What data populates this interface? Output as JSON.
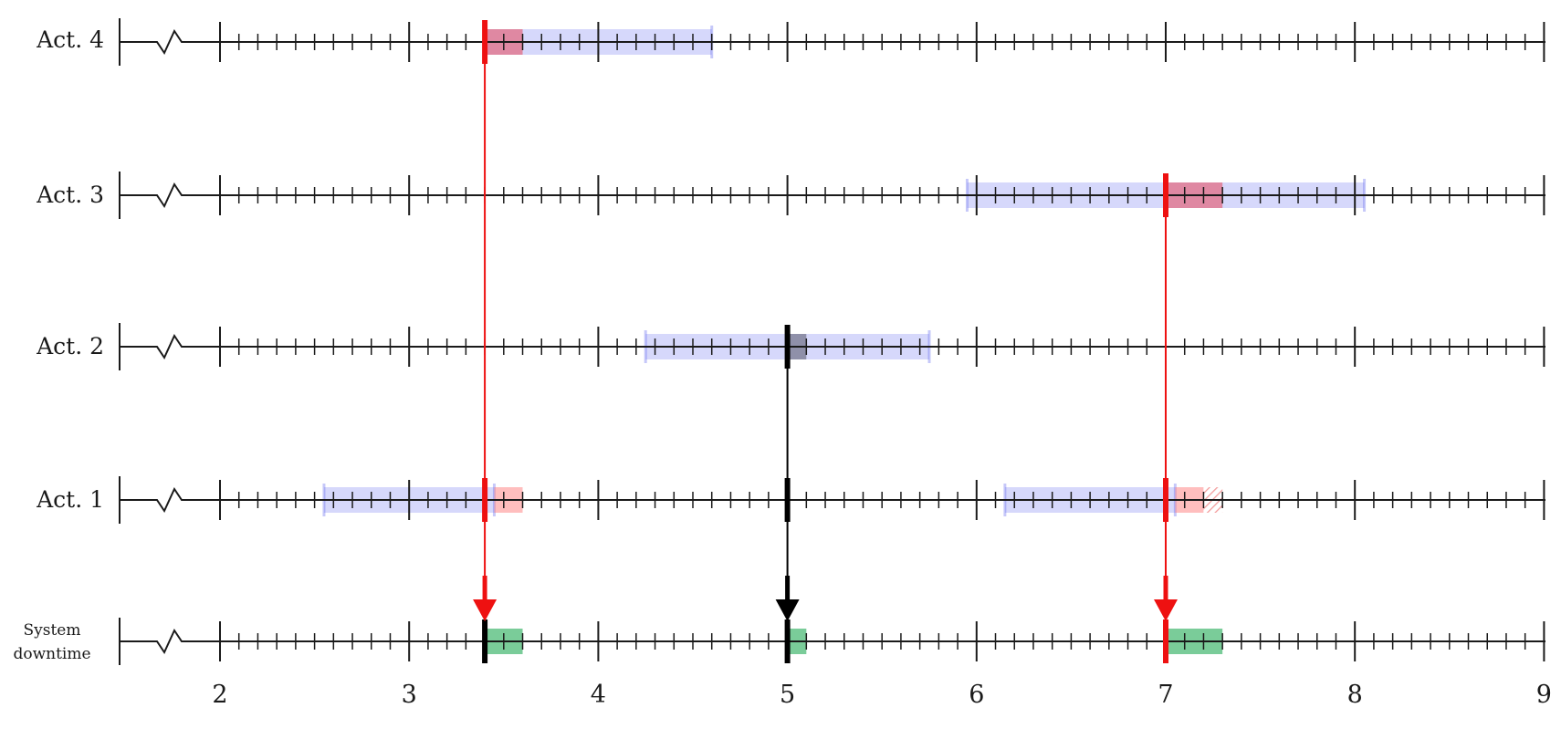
{
  "axis": {
    "min": 2,
    "max": 9,
    "tick_labels": [
      "2",
      "3",
      "4",
      "5",
      "6",
      "7",
      "8",
      "9"
    ],
    "minor_ticks_per_unit": 10,
    "axis_break": true
  },
  "colors": {
    "axis": "#1a1a1a",
    "window": "#5b62ee",
    "red_overlap": "#e8374a",
    "red_light": "#ff6f6f",
    "dark_overlap": "#555566",
    "downtime": "#22aa55",
    "red_event": "#ee1111",
    "black_event": "#000000"
  },
  "rows": [
    {
      "id": "act4",
      "label": "Act. 4",
      "windows": [
        {
          "start": 3.4,
          "end": 4.6,
          "overlap": {
            "start": 3.4,
            "end": 3.6,
            "style": "red"
          }
        }
      ]
    },
    {
      "id": "act3",
      "label": "Act. 3",
      "windows": [
        {
          "start": 5.95,
          "end": 8.05,
          "overlap": {
            "start": 7.0,
            "end": 7.3,
            "style": "red"
          }
        }
      ]
    },
    {
      "id": "act2",
      "label": "Act. 2",
      "windows": [
        {
          "start": 4.25,
          "end": 5.75,
          "overlap": {
            "start": 5.0,
            "end": 5.1,
            "style": "dark"
          }
        }
      ]
    },
    {
      "id": "act1",
      "label": "Act. 1",
      "windows": [
        {
          "start": 2.55,
          "end": 3.45,
          "overlap": {
            "start": 3.45,
            "end": 3.6,
            "style": "light-red"
          }
        },
        {
          "start": 6.15,
          "end": 7.05,
          "overlap": {
            "start": 7.05,
            "end": 7.2,
            "style": "light-red"
          },
          "hatched": {
            "start": 7.2,
            "end": 7.3
          }
        }
      ]
    },
    {
      "id": "downtime",
      "label_lines": [
        "System",
        "downtime"
      ],
      "downtime": [
        {
          "start": 3.4,
          "end": 3.6
        },
        {
          "start": 5.0,
          "end": 5.1
        },
        {
          "start": 7.0,
          "end": 7.3
        }
      ]
    }
  ],
  "events": [
    {
      "at": 3.4,
      "from_row": "act4",
      "color": "red"
    },
    {
      "at": 5.0,
      "from_row": "act2",
      "color": "black"
    },
    {
      "at": 7.0,
      "from_row": "act3",
      "color": "red"
    }
  ]
}
